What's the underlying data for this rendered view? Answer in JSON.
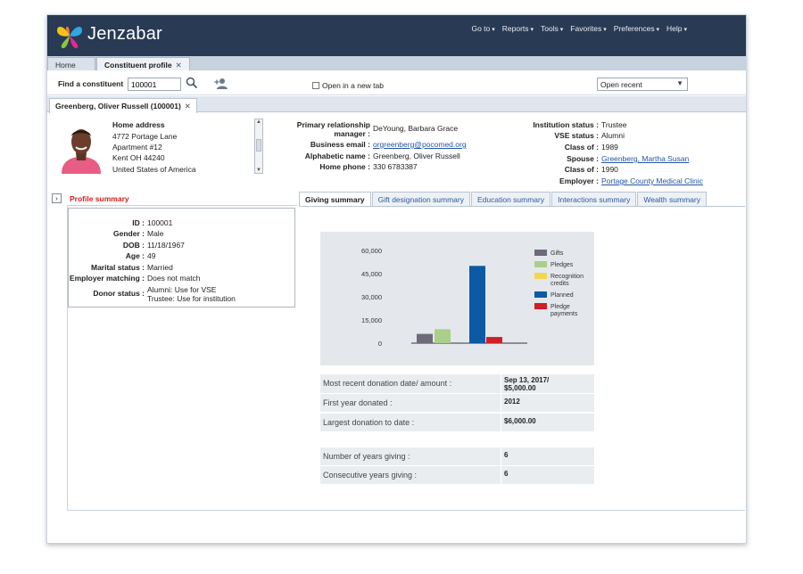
{
  "app": {
    "brand": "Jenzabar",
    "nav": [
      "Go to",
      "Reports",
      "Tools",
      "Favorites",
      "Preferences",
      "Help"
    ],
    "tabs": [
      "Home",
      "Constituent profile"
    ]
  },
  "find": {
    "label": "Find a constituent",
    "value": "100001",
    "open_new_tab": "Open in a new tab",
    "open_recent": "Open recent"
  },
  "record_tab": "Greenberg, Oliver Russell (100001)",
  "address": {
    "title": "Home address",
    "lines": [
      "4772 Portage Lane",
      "Apartment #12",
      "Kent OH 44240",
      "United States of America"
    ]
  },
  "contact": {
    "manager_label": "Primary relationship manager",
    "manager": "DeYoung, Barbara Grace",
    "email_label": "Business email",
    "email": "orgreenberg@pocomed.org",
    "alpha_label": "Alphabetic name",
    "alpha": "Greenberg, Oliver Russell",
    "phone_label": "Home phone",
    "phone": "330 6783387"
  },
  "institution": {
    "status_label": "Institution status",
    "status": "Trustee",
    "vse_label": "VSE status",
    "vse": "Alumni",
    "class_label": "Class of",
    "class": "1989",
    "spouse_label": "Spouse",
    "spouse": "Greenberg, Martha Susan",
    "class2_label": "Class of",
    "class2": "1990",
    "employer_label": "Employer",
    "employer": "Portage County Medical Clinic"
  },
  "profile": {
    "title": "Profile summary",
    "rows": [
      {
        "k": "ID",
        "v": "100001"
      },
      {
        "k": "Gender",
        "v": "Male"
      },
      {
        "k": "DOB",
        "v": "11/18/1967"
      },
      {
        "k": "Age",
        "v": "49"
      },
      {
        "k": "Marital status",
        "v": "Married"
      },
      {
        "k": "Employer matching",
        "v": "Does not match"
      }
    ],
    "donor_label": "Donor status",
    "donor_lines": [
      "Alumni: Use for VSE",
      "Trustee: Use for institution"
    ]
  },
  "summary_tabs": [
    "Giving summary",
    "Gift designation summary",
    "Education summary",
    "Interactions summary",
    "Wealth summary"
  ],
  "chart_data": {
    "type": "bar",
    "categories": [
      "Gifts",
      "Pledges",
      "Recognition credits",
      "Planned",
      "Pledge payments"
    ],
    "values": [
      6000,
      9000,
      0,
      50000,
      4000
    ],
    "ylim": [
      0,
      60000
    ],
    "yticks": [
      "0",
      "15,000",
      "30,000",
      "45,000",
      "60,000"
    ],
    "legend": [
      "Gifts",
      "Pledges",
      "Recognition credits",
      "Planned",
      "Pledge payments"
    ],
    "colors": [
      "#6f6a7a",
      "#a9cf8a",
      "#f3d64e",
      "#0b5aa3",
      "#d11f26"
    ],
    "legend_position": "right"
  },
  "stats1": [
    {
      "k": "Most recent donation date/ amount :",
      "v1": "Sep 13, 2017/",
      "v2": "$5,000.00"
    },
    {
      "k": "First year donated :",
      "v1": "2012",
      "v2": ""
    },
    {
      "k": "Largest donation to date :",
      "v1": "$6,000.00",
      "v2": ""
    }
  ],
  "stats2": [
    {
      "k": "Number of years giving :",
      "v1": "6"
    },
    {
      "k": "Consecutive years giving :",
      "v1": "6"
    }
  ]
}
